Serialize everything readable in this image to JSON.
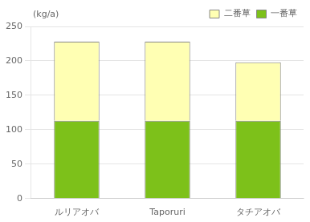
{
  "chart_data": {
    "type": "bar",
    "stacked": true,
    "categories": [
      "ルリアオバ",
      "Taporuri",
      "タチアオバ"
    ],
    "series": [
      {
        "name": "一番草",
        "color": "#7dc11a",
        "values": [
          113,
          113,
          113
        ]
      },
      {
        "name": "二番草",
        "color": "#ffffb3",
        "values": [
          115,
          115,
          85
        ]
      }
    ],
    "annotations": [
      "(kg/a)"
    ],
    "ylim": [
      0,
      250
    ],
    "yticks": [
      0,
      50,
      100,
      150,
      200,
      250
    ],
    "grid": true,
    "legend": "upper right"
  }
}
